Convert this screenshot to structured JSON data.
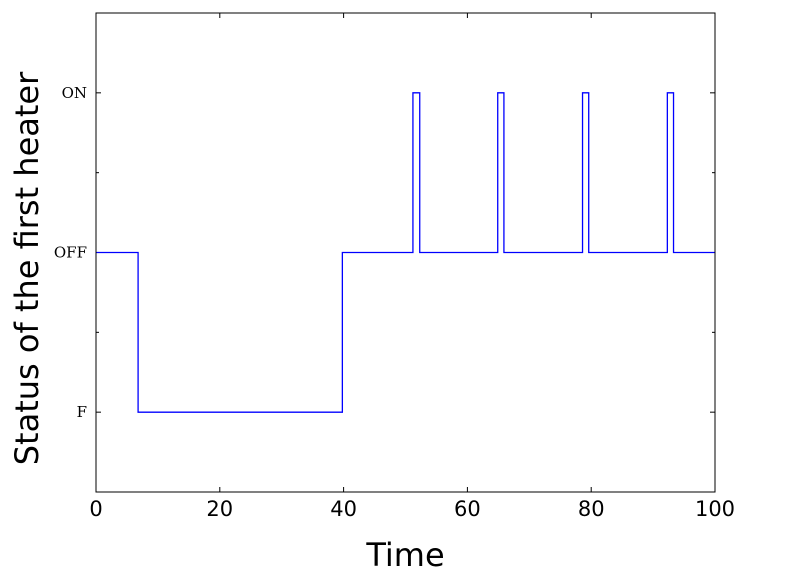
{
  "chart_data": {
    "type": "line",
    "step": true,
    "title": "",
    "xlabel": "Time",
    "ylabel": "Status of the first heater",
    "xlim": [
      0,
      100
    ],
    "ylim": [
      -1.5,
      1.5
    ],
    "xticks": [
      0,
      20,
      40,
      60,
      80,
      100
    ],
    "yticks": [
      {
        "value": -1,
        "label": "F"
      },
      {
        "value": 0,
        "label": "OFF"
      },
      {
        "value": 1,
        "label": "ON"
      }
    ],
    "minor_yticks": [
      -0.5,
      0.5
    ],
    "grid": false,
    "series": [
      {
        "color": "#0000ff",
        "points": [
          [
            0,
            0
          ],
          [
            6.8,
            0
          ],
          [
            6.8,
            -1
          ],
          [
            39.8,
            -1
          ],
          [
            39.8,
            0
          ],
          [
            51.2,
            0
          ],
          [
            51.2,
            1
          ],
          [
            52.3,
            1
          ],
          [
            52.3,
            0
          ],
          [
            64.9,
            0
          ],
          [
            64.9,
            1
          ],
          [
            65.9,
            1
          ],
          [
            65.9,
            0
          ],
          [
            78.6,
            0
          ],
          [
            78.6,
            1
          ],
          [
            79.6,
            1
          ],
          [
            79.6,
            0
          ],
          [
            92.3,
            0
          ],
          [
            92.3,
            1
          ],
          [
            93.3,
            1
          ],
          [
            93.3,
            0
          ],
          [
            100,
            0
          ]
        ]
      }
    ]
  }
}
